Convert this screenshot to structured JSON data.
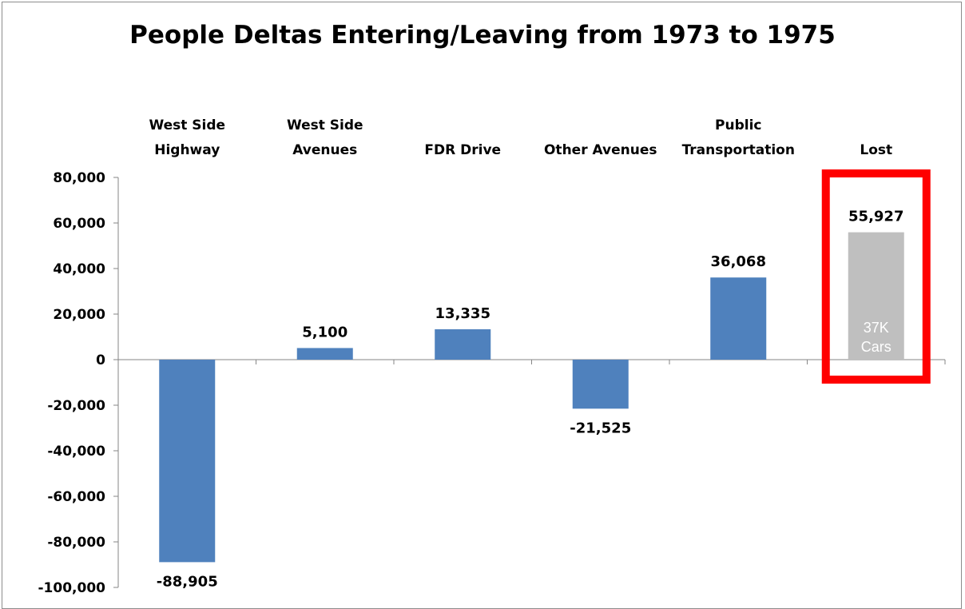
{
  "chart_data": {
    "type": "bar",
    "title": "People Deltas Entering/Leaving from 1973 to 1975",
    "categories": [
      [
        "West Side",
        "Highway"
      ],
      [
        "West Side",
        "Avenues"
      ],
      [
        "FDR Drive"
      ],
      [
        "Other Avenues"
      ],
      [
        "Public",
        "Transportation"
      ],
      [
        "Lost"
      ]
    ],
    "values": [
      -88905,
      5100,
      13335,
      -21525,
      36068,
      55927
    ],
    "data_labels": [
      "-88,905",
      "5,100",
      "13,335",
      "-21,525",
      "36,068",
      "55,927"
    ],
    "bar_colors": [
      "#4f81bd",
      "#4f81bd",
      "#4f81bd",
      "#4f81bd",
      "#4f81bd",
      "#bfbfbf"
    ],
    "ylim": [
      -100000,
      80000
    ],
    "yticks": [
      80000,
      60000,
      40000,
      20000,
      0,
      -20000,
      -40000,
      -60000,
      -80000,
      -100000
    ],
    "ytick_labels": [
      "80,000",
      "60,000",
      "40,000",
      "20,000",
      "0",
      "-20,000",
      "-40,000",
      "-60,000",
      "-80,000",
      "-100,000"
    ],
    "annotations": [
      {
        "category": "Lost",
        "lines": [
          "37K",
          "Cars"
        ],
        "color": "#ffffff"
      }
    ],
    "highlight": {
      "category": "Lost",
      "color": "#ff0000"
    },
    "xlabel": "",
    "ylabel": "",
    "grid": false
  }
}
